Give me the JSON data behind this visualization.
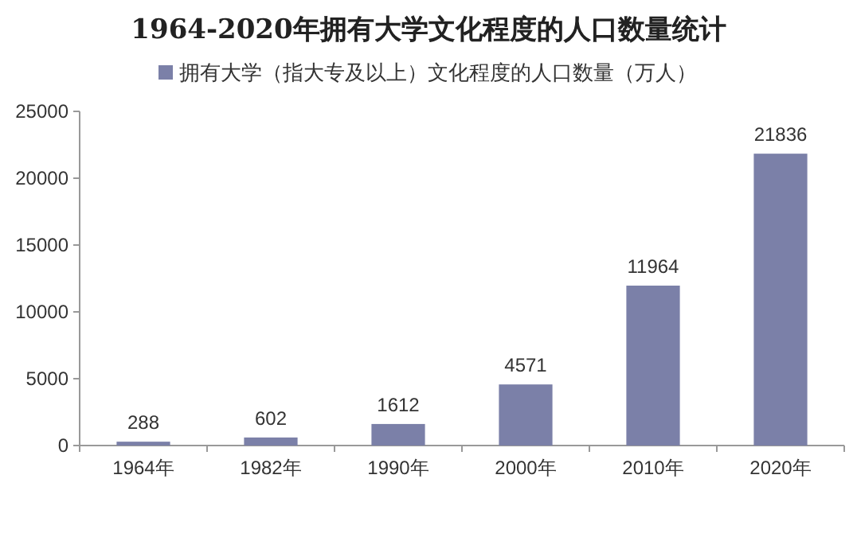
{
  "chart_data": {
    "type": "bar",
    "title": "1964-2020年拥有大学文化程度的人口数量统计",
    "categories": [
      "1964年",
      "1982年",
      "1990年",
      "2000年",
      "2010年",
      "2020年"
    ],
    "series": [
      {
        "name": "拥有大学（指大专及以上）文化程度的人口数量（万人）",
        "color": "#7b80a8",
        "values": [
          288,
          602,
          1612,
          4571,
          11964,
          21836
        ]
      }
    ],
    "ylim": [
      0,
      25000
    ],
    "yticks": [
      0,
      5000,
      10000,
      15000,
      20000,
      25000
    ],
    "data_labels": true,
    "legend": "top"
  }
}
